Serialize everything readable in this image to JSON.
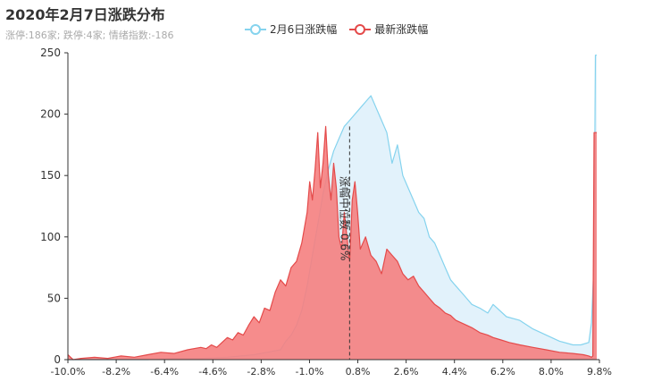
{
  "chart_data": {
    "type": "area",
    "title": "2020年2月7日涨跌分布",
    "subtitle": "涨停:186家; 跌停:4家; 情绪指数:-186",
    "x_tick_labels": [
      "-10.0%",
      "-8.2%",
      "-6.4%",
      "-4.6%",
      "-2.8%",
      "-1.0%",
      "0.8%",
      "2.6%",
      "4.4%",
      "6.2%",
      "8.0%",
      "9.8%"
    ],
    "x_range": [
      -10.0,
      10.0
    ],
    "ylim": [
      0,
      250
    ],
    "y_ticks": [
      0,
      50,
      100,
      150,
      200,
      250
    ],
    "legend_position": "top",
    "median_marker": {
      "x": 0.6,
      "label": "涨幅中位数 0.6%"
    },
    "series": [
      {
        "name": "2月6日涨跌幅",
        "color": "#85d3ee",
        "fill": "#d8eefa",
        "x": [
          -10.0,
          -9.8,
          -9.0,
          -8.0,
          -7.0,
          -6.0,
          -5.0,
          -4.0,
          -3.0,
          -2.5,
          -2.0,
          -1.8,
          -1.6,
          -1.4,
          -1.2,
          -1.0,
          -0.8,
          -0.6,
          -0.4,
          -0.2,
          0.0,
          0.2,
          0.4,
          0.6,
          0.8,
          1.0,
          1.2,
          1.4,
          1.6,
          1.8,
          2.0,
          2.2,
          2.4,
          2.6,
          2.8,
          3.0,
          3.2,
          3.4,
          3.6,
          3.8,
          4.0,
          4.2,
          4.4,
          4.6,
          4.8,
          5.0,
          5.2,
          5.5,
          5.8,
          6.0,
          6.5,
          7.0,
          7.5,
          8.0,
          8.5,
          9.0,
          9.3,
          9.6,
          9.7,
          9.8,
          9.85,
          9.9
        ],
        "values": [
          0,
          0,
          0,
          0,
          0,
          1,
          1,
          2,
          4,
          6,
          8,
          15,
          20,
          28,
          40,
          60,
          85,
          110,
          135,
          155,
          170,
          180,
          190,
          195,
          200,
          205,
          210,
          215,
          205,
          195,
          185,
          160,
          175,
          150,
          140,
          130,
          120,
          115,
          100,
          95,
          85,
          75,
          65,
          60,
          55,
          50,
          45,
          42,
          38,
          45,
          35,
          32,
          25,
          20,
          15,
          12,
          12,
          14,
          30,
          80,
          248,
          248
        ]
      },
      {
        "name": "最新涨跌幅",
        "color": "#e44a4a",
        "fill": "#f57f7f",
        "x": [
          -10.0,
          -9.9,
          -9.8,
          -9.5,
          -9.0,
          -8.5,
          -8.0,
          -7.5,
          -7.0,
          -6.5,
          -6.0,
          -5.5,
          -5.0,
          -4.8,
          -4.6,
          -4.4,
          -4.2,
          -4.0,
          -3.8,
          -3.6,
          -3.4,
          -3.2,
          -3.0,
          -2.8,
          -2.6,
          -2.4,
          -2.2,
          -2.0,
          -1.8,
          -1.6,
          -1.4,
          -1.2,
          -1.0,
          -0.9,
          -0.8,
          -0.7,
          -0.6,
          -0.5,
          -0.4,
          -0.3,
          -0.2,
          -0.1,
          0.0,
          0.1,
          0.2,
          0.3,
          0.4,
          0.5,
          0.6,
          0.7,
          0.8,
          0.9,
          1.0,
          1.2,
          1.4,
          1.6,
          1.8,
          2.0,
          2.2,
          2.4,
          2.6,
          2.8,
          3.0,
          3.2,
          3.4,
          3.6,
          3.8,
          4.0,
          4.2,
          4.4,
          4.6,
          4.8,
          5.0,
          5.2,
          5.5,
          5.8,
          6.0,
          6.3,
          6.6,
          7.0,
          7.5,
          8.0,
          8.5,
          9.0,
          9.4,
          9.6,
          9.7,
          9.75,
          9.8,
          9.85,
          9.9
        ],
        "values": [
          4,
          2,
          0,
          1,
          2,
          1,
          3,
          2,
          4,
          6,
          5,
          8,
          10,
          9,
          12,
          10,
          14,
          18,
          16,
          22,
          20,
          28,
          35,
          30,
          42,
          40,
          55,
          65,
          60,
          75,
          80,
          95,
          120,
          145,
          130,
          155,
          185,
          140,
          160,
          190,
          150,
          130,
          160,
          140,
          100,
          90,
          120,
          100,
          80,
          130,
          145,
          120,
          90,
          100,
          85,
          80,
          70,
          90,
          85,
          80,
          70,
          65,
          68,
          60,
          55,
          50,
          45,
          42,
          38,
          36,
          32,
          30,
          28,
          26,
          22,
          20,
          18,
          16,
          14,
          12,
          10,
          8,
          6,
          5,
          4,
          3,
          2,
          3,
          185,
          185,
          185
        ]
      }
    ]
  }
}
